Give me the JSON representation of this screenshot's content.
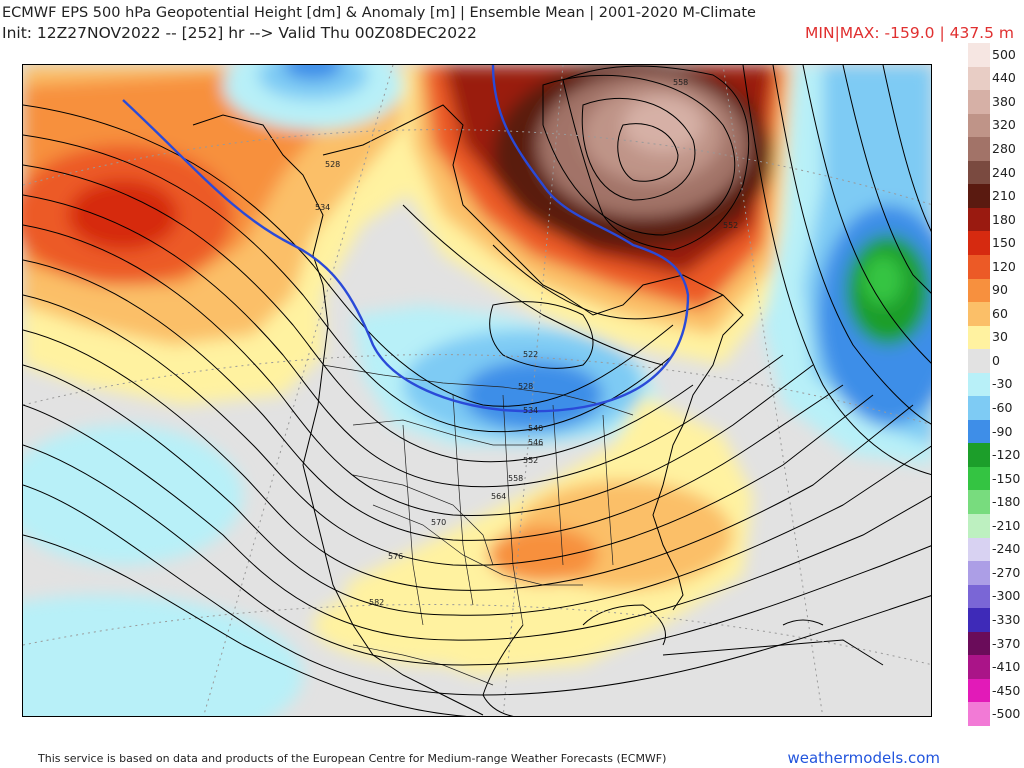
{
  "header": {
    "title": "ECMWF EPS 500 hPa Geopotential Height [dm] & Anomaly [m] | Ensemble Mean | 2001-2020 M-Climate",
    "init_line": "Init: 12Z27NOV2022 -- [252] hr --> Valid Thu 00Z08DEC2022",
    "minmax": "MIN|MAX: -159.0 | 437.5 m"
  },
  "footer": {
    "attribution": "This service is based on data and products of the European Centre for Medium-range Weather Forecasts (ECMWF)",
    "brand": "weathermodels.com"
  },
  "legend": {
    "levels": [
      {
        "label": "500",
        "color": "#f6e6e2"
      },
      {
        "label": "440",
        "color": "#e8cdc5"
      },
      {
        "label": "380",
        "color": "#d6b0a6"
      },
      {
        "label": "320",
        "color": "#bf9488"
      },
      {
        "label": "280",
        "color": "#a27368"
      },
      {
        "label": "240",
        "color": "#7a4a40"
      },
      {
        "label": "210",
        "color": "#5a1a10"
      },
      {
        "label": "180",
        "color": "#9a1a10"
      },
      {
        "label": "150",
        "color": "#d62a10"
      },
      {
        "label": "120",
        "color": "#ec5a26"
      },
      {
        "label": "90",
        "color": "#f7903e"
      },
      {
        "label": "60",
        "color": "#fbbf68"
      },
      {
        "label": "30",
        "color": "#fff2a0"
      },
      {
        "label": "0",
        "color": "#e2e2e2"
      },
      {
        "label": "-30",
        "color": "#b8f0f8"
      },
      {
        "label": "-60",
        "color": "#7ecbf4"
      },
      {
        "label": "-90",
        "color": "#3e8ee8"
      },
      {
        "label": "-120",
        "color": "#1c9e2a"
      },
      {
        "label": "-150",
        "color": "#34c442"
      },
      {
        "label": "-180",
        "color": "#78dc7e"
      },
      {
        "label": "-210",
        "color": "#bdf0c0"
      },
      {
        "label": "-240",
        "color": "#d8d2f2"
      },
      {
        "label": "-270",
        "color": "#ac9ee6"
      },
      {
        "label": "-300",
        "color": "#7a66d6"
      },
      {
        "label": "-330",
        "color": "#3e2ab8"
      },
      {
        "label": "-370",
        "color": "#6a0c5a"
      },
      {
        "label": "-410",
        "color": "#aa1488"
      },
      {
        "label": "-450",
        "color": "#e21ab8"
      },
      {
        "label": "-500",
        "color": "#f27ad6"
      }
    ]
  },
  "map": {
    "contour_labels": [
      "528",
      "534",
      "552",
      "522",
      "528",
      "534",
      "540",
      "546",
      "552",
      "558",
      "564",
      "570",
      "576",
      "582",
      "558"
    ]
  }
}
